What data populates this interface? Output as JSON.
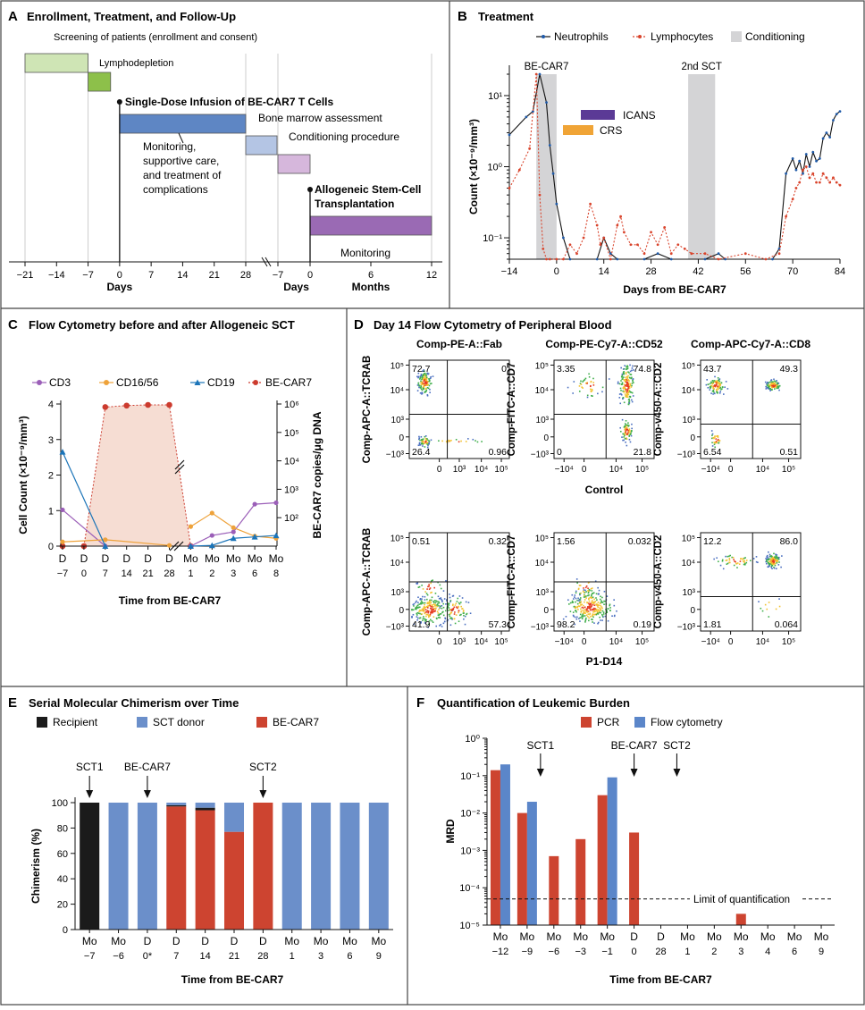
{
  "figure": {
    "panels": {
      "A": {
        "letter": "A",
        "title": "Enrollment, Treatment, and Follow-Up"
      },
      "B": {
        "letter": "B",
        "title": "Treatment"
      },
      "C": {
        "letter": "C",
        "title": "Flow Cytometry before and after Allogeneic SCT"
      },
      "D": {
        "letter": "D",
        "title": "Day 14 Flow Cytometry of Peripheral Blood"
      },
      "E": {
        "letter": "E",
        "title": "Serial Molecular Chimerism over Time"
      },
      "F": {
        "letter": "F",
        "title": "Quantification of Leukemic Burden"
      }
    }
  },
  "chart_data": [
    {
      "id": "A",
      "type": "timeline",
      "title": "Enrollment, Treatment, and Follow-Up",
      "phases": [
        {
          "label": "Screening of patients (enrollment and consent)",
          "start": -21,
          "end": -7,
          "color": "#cfe5b5"
        },
        {
          "label": "Lymphodepletion",
          "start": -7,
          "end": -2,
          "color": "#8dc04a"
        },
        {
          "label": "Monitoring, supportive care, and treatment of complications",
          "start": 0,
          "end": 28,
          "color": "#5e86c4"
        },
        {
          "label": "Bone marrow assessment",
          "start": 28,
          "end": 33,
          "color": "#b4c5e4"
        },
        {
          "label": "Conditioning procedure",
          "start": -7,
          "end": 0,
          "axis": "second",
          "color": "#d6b7dc"
        },
        {
          "label": "Monitoring",
          "start": 0,
          "end": 12,
          "axis": "months",
          "color": "#9a6ab4"
        }
      ],
      "events": [
        {
          "label": "Single-Dose Infusion of BE-CAR7 T Cells",
          "day": 0
        },
        {
          "label": "Allogeneic Stem-Cell Transplantation",
          "day": 0,
          "axis": "second"
        }
      ],
      "axis1_ticks": [
        "−21",
        "−14",
        "−7",
        "0",
        "7",
        "14",
        "21",
        "28"
      ],
      "axis2_ticks": [
        "−7",
        "0"
      ],
      "axis3_ticks": [
        "0",
        "6",
        "12"
      ],
      "axis_labels": {
        "days1": "Days",
        "days2": "Days",
        "months": "Months"
      },
      "monitoring_text": [
        "Monitoring,",
        "supportive care,",
        "and treatment of",
        "complications"
      ],
      "allo_text": [
        "Allogeneic Stem-Cell",
        "Transplantation"
      ]
    },
    {
      "id": "B",
      "type": "line",
      "title": "Treatment",
      "xlabel": "Days from BE-CAR7",
      "ylabel": "Count (×10⁻⁹/mm³)",
      "ylog": true,
      "ylim": [
        0.05,
        20
      ],
      "xlim": [
        -14,
        84
      ],
      "x_ticks": [
        "−14",
        "0",
        "14",
        "28",
        "42",
        "56",
        "70",
        "84"
      ],
      "y_ticks": [
        "10⁻¹",
        "10⁰",
        "10¹"
      ],
      "legend": {
        "neutrophils": "Neutrophils",
        "lymphocytes": "Lymphocytes",
        "conditioning": "Conditioning"
      },
      "shaded": [
        {
          "label": "BE-CAR7",
          "start": -6,
          "end": 0
        },
        {
          "label": "2nd SCT",
          "start": 39,
          "end": 47
        }
      ],
      "bars": [
        {
          "label": "ICANS",
          "start": 5,
          "end": 13,
          "color": "#5b3a96"
        },
        {
          "label": "CRS",
          "start": 0,
          "end": 7,
          "color": "#f0a436"
        }
      ],
      "series": [
        {
          "name": "Neutrophils",
          "color": "#1f5aa8",
          "points": [
            [
              -14,
              2.8
            ],
            [
              -9,
              5
            ],
            [
              -7,
              6
            ],
            [
              -5,
              20
            ],
            [
              -3,
              8
            ],
            [
              -2,
              2
            ],
            [
              -1,
              0.8
            ],
            [
              0,
              0.3
            ],
            [
              2,
              0.1
            ],
            [
              4,
              0.05
            ],
            [
              12,
              0.05
            ],
            [
              14,
              0.1
            ],
            [
              16,
              0.06
            ],
            [
              18,
              0.05
            ],
            [
              26,
              0.05
            ],
            [
              30,
              0.06
            ],
            [
              34,
              0.05
            ],
            [
              44,
              0.05
            ],
            [
              48,
              0.06
            ],
            [
              50,
              0.05
            ],
            [
              64,
              0.05
            ],
            [
              66,
              0.07
            ],
            [
              68,
              0.8
            ],
            [
              70,
              1.3
            ],
            [
              71,
              0.9
            ],
            [
              72,
              1.2
            ],
            [
              73,
              0.8
            ],
            [
              74,
              1.5
            ],
            [
              75,
              1.0
            ],
            [
              76,
              1.6
            ],
            [
              77,
              1.2
            ],
            [
              78,
              1.3
            ],
            [
              79,
              2.5
            ],
            [
              80,
              3.0
            ],
            [
              81,
              2.6
            ],
            [
              82,
              4.5
            ],
            [
              83,
              5.5
            ],
            [
              84,
              6
            ]
          ]
        },
        {
          "name": "Lymphocytes",
          "color": "#d9442c",
          "points": [
            [
              -14,
              0.5
            ],
            [
              -11,
              0.9
            ],
            [
              -8,
              1.8
            ],
            [
              -6,
              20
            ],
            [
              -5,
              0.4
            ],
            [
              -4,
              0.07
            ],
            [
              -3,
              0.05
            ],
            [
              -2,
              0.05
            ],
            [
              0,
              0.05
            ],
            [
              2,
              0.05
            ],
            [
              4,
              0.08
            ],
            [
              6,
              0.06
            ],
            [
              8,
              0.1
            ],
            [
              10,
              0.3
            ],
            [
              12,
              0.15
            ],
            [
              13,
              0.08
            ],
            [
              14,
              0.1
            ],
            [
              16,
              0.05
            ],
            [
              18,
              0.15
            ],
            [
              19,
              0.2
            ],
            [
              20,
              0.12
            ],
            [
              22,
              0.08
            ],
            [
              24,
              0.08
            ],
            [
              26,
              0.06
            ],
            [
              28,
              0.12
            ],
            [
              30,
              0.08
            ],
            [
              32,
              0.14
            ],
            [
              34,
              0.06
            ],
            [
              36,
              0.08
            ],
            [
              38,
              0.07
            ],
            [
              40,
              0.06
            ],
            [
              44,
              0.06
            ],
            [
              48,
              0.05
            ],
            [
              56,
              0.06
            ],
            [
              62,
              0.05
            ],
            [
              66,
              0.06
            ],
            [
              68,
              0.2
            ],
            [
              70,
              0.35
            ],
            [
              71,
              0.5
            ],
            [
              72,
              0.6
            ],
            [
              73,
              0.9
            ],
            [
              74,
              1.0
            ],
            [
              75,
              0.7
            ],
            [
              76,
              0.8
            ],
            [
              77,
              0.6
            ],
            [
              78,
              0.6
            ],
            [
              79,
              0.8
            ],
            [
              80,
              0.7
            ],
            [
              81,
              0.6
            ],
            [
              82,
              0.7
            ],
            [
              83,
              0.6
            ],
            [
              84,
              0.55
            ]
          ]
        }
      ]
    },
    {
      "id": "C",
      "type": "line",
      "title": "Flow Cytometry before and after Allogeneic SCT",
      "xlabel": "Time from BE-CAR7",
      "ylabel": "Cell Count (×10⁻⁹/mm³)",
      "ylabel_right": "BE-CAR7 copies/μg DNA",
      "ylim": [
        0,
        4
      ],
      "categories": [
        "D −7",
        "D 0",
        "D 7",
        "D 14",
        "D 21",
        "D 28",
        "Mo 1",
        "Mo 2",
        "Mo 3",
        "Mo 6",
        "Mo 8"
      ],
      "x_labels_top": [
        "D",
        "D",
        "D",
        "D",
        "D",
        "D",
        "Mo",
        "Mo",
        "Mo",
        "Mo",
        "Mo"
      ],
      "x_labels_bottom": [
        "−7",
        "0",
        "7",
        "14",
        "21",
        "28",
        "1",
        "2",
        "3",
        "6",
        "8"
      ],
      "y_ticks": [
        "0",
        "1",
        "2",
        "3",
        "4"
      ],
      "y2_ticks": [
        "10²",
        "10³",
        "10⁴",
        "10⁵",
        "10⁶"
      ],
      "legend": [
        "CD3",
        "CD16/56",
        "CD19",
        "BE-CAR7"
      ],
      "series": [
        {
          "name": "CD3",
          "color": "#9b5fb8",
          "segments": [
            [
              [
                0,
                1.02
              ],
              [
                2,
                0
              ]
            ],
            [
              [
                6,
                0
              ],
              [
                7,
                0.3
              ],
              [
                8,
                0.4
              ],
              [
                9,
                1.18
              ],
              [
                10,
                1.22
              ]
            ]
          ]
        },
        {
          "name": "CD16/56",
          "color": "#eea23a",
          "segments": [
            [
              [
                0,
                0.12
              ],
              [
                2,
                0.18
              ],
              [
                5,
                0.02
              ]
            ],
            [
              [
                6,
                0.55
              ],
              [
                7,
                0.93
              ],
              [
                8,
                0.52
              ],
              [
                9,
                0.28
              ],
              [
                10,
                0.22
              ]
            ]
          ]
        },
        {
          "name": "CD19",
          "color": "#1b74b8",
          "segments": [
            [
              [
                0,
                2.65
              ],
              [
                2,
                0
              ]
            ],
            [
              [
                6,
                0
              ],
              [
                7,
                0.02
              ],
              [
                8,
                0.22
              ],
              [
                9,
                0.26
              ],
              [
                10,
                0.3
              ]
            ]
          ]
        },
        {
          "name": "BE-CAR7",
          "color": "#cc3b2e",
          "y2_log": true,
          "points": [
            [
              0,
              0
            ],
            [
              1,
              0
            ],
            [
              2,
              780000
            ],
            [
              3,
              880000
            ],
            [
              4,
              930000
            ],
            [
              5,
              930000
            ],
            [
              6,
              0
            ]
          ]
        }
      ]
    },
    {
      "id": "D",
      "type": "flow-cytometry-grid",
      "title": "Day 14 Flow Cytometry of Peripheral Blood",
      "column_titles": [
        "Comp-PE-A::Fab",
        "Comp-PE-Cy7-A::CD52",
        "Comp-APC-Cy7-A::CD8"
      ],
      "y_labels": [
        "Comp-APC-A::TCRAB",
        "Comp-FITC-A::CD7",
        "Comp-v450-A::CD2"
      ],
      "row_labels": [
        "Control",
        "P1-D14"
      ],
      "y_ticks": [
        "10⁵",
        "10⁴",
        "10³",
        "0",
        "−10³"
      ],
      "x_ticks": [
        "0",
        "10³",
        "10⁴",
        "10⁵"
      ],
      "x_ticks_wide": [
        "−10⁴",
        "0",
        "10⁴",
        "10⁵"
      ],
      "quadrants": [
        {
          "ul": "72.7",
          "ur": "0",
          "ll": "26.4",
          "lr": "0.96"
        },
        {
          "ul": "3.35",
          "ur": "74.8",
          "ll": "0",
          "lr": "21.8"
        },
        {
          "ul": "43.7",
          "ur": "49.3",
          "ll": "6.54",
          "lr": "0.51"
        },
        {
          "ul": "0.51",
          "ur": "0.32",
          "ll": "41.9",
          "lr": "57.3"
        },
        {
          "ul": "1.56",
          "ur": "0.032",
          "ll": "98.2",
          "lr": "0.19"
        },
        {
          "ul": "12.2",
          "ur": "86.0",
          "ll": "1.81",
          "lr": "0.064"
        }
      ]
    },
    {
      "id": "E",
      "type": "stacked-bar",
      "title": "Serial Molecular Chimerism over Time",
      "xlabel": "Time from BE-CAR7",
      "ylabel": "Chimerism (%)",
      "ylim": [
        0,
        100
      ],
      "y_ticks": [
        "0",
        "20",
        "40",
        "60",
        "80",
        "100"
      ],
      "categories_top": [
        "Mo",
        "Mo",
        "D",
        "D",
        "D",
        "D",
        "D",
        "Mo",
        "Mo",
        "Mo",
        "Mo"
      ],
      "categories_bottom": [
        "−7",
        "−6",
        "0*",
        "7",
        "14",
        "21",
        "28",
        "1",
        "3",
        "6",
        "9"
      ],
      "legend": [
        {
          "name": "Recipient",
          "color": "#1b1b1b"
        },
        {
          "name": "SCT donor",
          "color": "#6b8fca"
        },
        {
          "name": "BE-CAR7",
          "color": "#cd4430"
        }
      ],
      "series": [
        {
          "name": "BE-CAR7",
          "values": [
            0,
            0,
            0,
            97,
            94,
            77,
            100,
            0,
            0,
            0,
            0
          ]
        },
        {
          "name": "Recipient",
          "values": [
            100,
            0,
            0,
            1,
            2,
            0,
            0,
            0,
            0,
            0,
            0
          ]
        },
        {
          "name": "SCT donor",
          "values": [
            0,
            100,
            100,
            2,
            4,
            23,
            0,
            100,
            100,
            100,
            100
          ]
        }
      ],
      "annotations": [
        {
          "label": "SCT1",
          "index": 0
        },
        {
          "label": "BE-CAR7",
          "index": 2
        },
        {
          "label": "SCT2",
          "index": 6
        }
      ]
    },
    {
      "id": "F",
      "type": "bar",
      "title": "Quantification of Leukemic Burden",
      "xlabel": "Time from BE-CAR7",
      "ylabel": "MRD",
      "ylog": true,
      "ylim": [
        1e-05,
        1
      ],
      "y_ticks": [
        "10⁰",
        "10⁻¹",
        "10⁻²",
        "10⁻³",
        "10⁻⁴",
        "10⁻⁵"
      ],
      "categories_top": [
        "Mo",
        "Mo",
        "Mo",
        "Mo",
        "Mo",
        "D",
        "D",
        "Mo",
        "Mo",
        "Mo",
        "Mo",
        "Mo",
        "Mo"
      ],
      "categories_bottom": [
        "−12",
        "−9",
        "−6",
        "−3",
        "−1",
        "0",
        "28",
        "1",
        "2",
        "3",
        "4",
        "6",
        "9"
      ],
      "legend": [
        {
          "name": "PCR",
          "color": "#cd4430"
        },
        {
          "name": "Flow cytometry",
          "color": "#5b86c9"
        }
      ],
      "series": [
        {
          "name": "PCR",
          "values": [
            0.14,
            0.01,
            0.0007,
            0.002,
            0.03,
            0.003,
            null,
            null,
            null,
            2e-05,
            null,
            null,
            null
          ]
        },
        {
          "name": "Flow cytometry",
          "values": [
            0.2,
            0.02,
            null,
            null,
            0.09,
            null,
            null,
            null,
            null,
            null,
            null,
            null,
            null
          ]
        }
      ],
      "limit_of_quantification": 5e-05,
      "limit_label": "Limit of quantification",
      "annotations": [
        {
          "label": "SCT1",
          "position": 1.5
        },
        {
          "label": "BE-CAR7",
          "position": 5
        },
        {
          "label": "SCT2",
          "position": 6.6
        }
      ]
    }
  ]
}
